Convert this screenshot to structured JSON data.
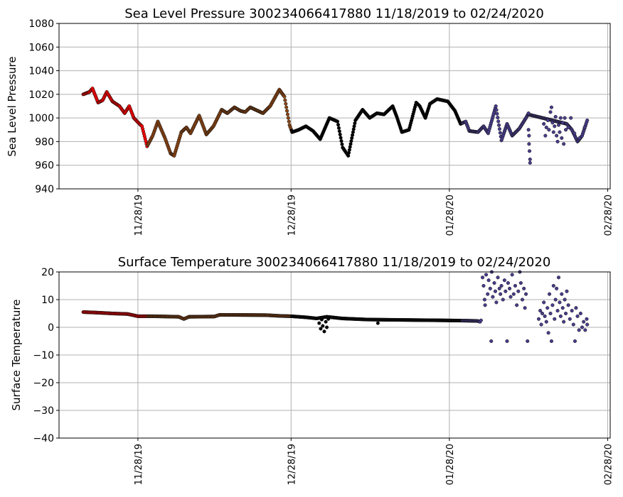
{
  "chart_data": [
    {
      "type": "scatter",
      "title": "Sea Level Pressure 300234066417880  11/18/2019 to 02/24/2020",
      "xlabel": "",
      "ylabel": "Sea Level Pressure",
      "ylim": [
        940,
        1080
      ],
      "yticks": [
        940,
        960,
        980,
        1000,
        1020,
        1040,
        1060,
        1080
      ],
      "yticklabels": [
        "940",
        "960",
        "980",
        "1000",
        "1020",
        "1040",
        "1060",
        "1080"
      ],
      "x_unit": "days since 11/28/19",
      "xlim": [
        -15.45,
        92.5
      ],
      "xticks": [
        0,
        30,
        61,
        92
      ],
      "xticklabels": [
        "11/28/19",
        "12/28/19",
        "01/28/20",
        "02/28/20"
      ],
      "grid": true,
      "segments": [
        {
          "until": 1.8,
          "color": "#ff0000"
        },
        {
          "until": 30.0,
          "color": "#8b4513"
        },
        {
          "until": 63.5,
          "color": "#000000"
        },
        {
          "until": 999,
          "color": "#483d8b"
        }
      ],
      "line_keypoints": [
        [
          -10.7,
          1020
        ],
        [
          -9.5,
          1022
        ],
        [
          -8.9,
          1025
        ],
        [
          -7.8,
          1013
        ],
        [
          -6.9,
          1015
        ],
        [
          -6.1,
          1022
        ],
        [
          -5.0,
          1014
        ],
        [
          -3.6,
          1010
        ],
        [
          -2.6,
          1004
        ],
        [
          -1.7,
          1010
        ],
        [
          -0.8,
          1000
        ],
        [
          0.3,
          995
        ],
        [
          0.8,
          993
        ],
        [
          1.8,
          976
        ],
        [
          2.9,
          985
        ],
        [
          3.9,
          997
        ],
        [
          5.3,
          983
        ],
        [
          6.4,
          970
        ],
        [
          7.1,
          968
        ],
        [
          8.5,
          988
        ],
        [
          9.5,
          992
        ],
        [
          10.3,
          987
        ],
        [
          12.0,
          1002
        ],
        [
          13.4,
          986
        ],
        [
          14.8,
          993
        ],
        [
          16.4,
          1007
        ],
        [
          17.5,
          1004
        ],
        [
          18.9,
          1009
        ],
        [
          20.1,
          1006
        ],
        [
          21.0,
          1005
        ],
        [
          22.0,
          1009
        ],
        [
          24.5,
          1004
        ],
        [
          25.9,
          1010
        ],
        [
          27.7,
          1024
        ],
        [
          28.7,
          1018
        ],
        [
          29.7,
          994
        ],
        [
          30.2,
          988
        ],
        [
          31.5,
          990
        ],
        [
          32.9,
          993
        ],
        [
          34.3,
          989
        ],
        [
          35.7,
          982
        ],
        [
          37.5,
          1000
        ],
        [
          39.1,
          997
        ],
        [
          40.1,
          975
        ],
        [
          41.2,
          968
        ],
        [
          42.6,
          998
        ],
        [
          44.0,
          1007
        ],
        [
          45.4,
          1000
        ],
        [
          46.8,
          1004
        ],
        [
          48.2,
          1003
        ],
        [
          49.9,
          1010
        ],
        [
          50.7,
          1001
        ],
        [
          51.7,
          988
        ],
        [
          53.1,
          990
        ],
        [
          54.5,
          1013
        ],
        [
          55.2,
          1010
        ],
        [
          56.3,
          1000
        ],
        [
          57.2,
          1012
        ],
        [
          58.6,
          1016
        ],
        [
          60.7,
          1014
        ],
        [
          62.1,
          1006
        ],
        [
          63.2,
          995
        ],
        [
          64.2,
          997
        ],
        [
          64.9,
          989
        ],
        [
          66.6,
          988
        ],
        [
          67.7,
          993
        ],
        [
          68.6,
          987
        ],
        [
          70.1,
          1010
        ],
        [
          71.2,
          981
        ],
        [
          72.3,
          995
        ],
        [
          73.3,
          985
        ],
        [
          74.7,
          991
        ],
        [
          76.0,
          1000
        ],
        [
          76.4,
          1003
        ],
        [
          84.0,
          995
        ],
        [
          85.0,
          990
        ],
        [
          86.1,
          980
        ],
        [
          87.0,
          985
        ],
        [
          88.0,
          998
        ]
      ],
      "line_gaps": [
        [
          76.5,
          83.9
        ]
      ],
      "scatter_points": [
        [
          76.5,
          990
        ],
        [
          76.6,
          985
        ],
        [
          76.6,
          978
        ],
        [
          76.7,
          972
        ],
        [
          76.8,
          965
        ],
        [
          76.8,
          962
        ],
        [
          76.5,
          1004
        ],
        [
          79.5,
          995
        ],
        [
          79.8,
          985
        ],
        [
          80.0,
          992
        ],
        [
          80.3,
          998
        ],
        [
          80.5,
          990
        ],
        [
          80.8,
          1005
        ],
        [
          81.0,
          1009
        ],
        [
          81.2,
          996
        ],
        [
          81.4,
          988
        ],
        [
          81.6,
          993
        ],
        [
          81.8,
          1001
        ],
        [
          82.0,
          985
        ],
        [
          82.2,
          980
        ],
        [
          82.4,
          994
        ],
        [
          82.6,
          988
        ],
        [
          82.8,
          1000
        ],
        [
          83.0,
          983
        ],
        [
          83.2,
          996
        ],
        [
          83.4,
          978
        ],
        [
          83.6,
          1000
        ],
        [
          83.8,
          990
        ],
        [
          84.3,
          992
        ],
        [
          84.8,
          1000
        ],
        [
          85.5,
          987
        ],
        [
          86.5,
          983
        ],
        [
          87.5,
          992
        ]
      ]
    },
    {
      "type": "scatter",
      "title": "Surface Temperature 300234066417880  11/18/2019 to 02/24/2020",
      "xlabel": "",
      "ylabel": "Surface Temperature",
      "ylim": [
        -40,
        20
      ],
      "yticks": [
        -40,
        -30,
        -20,
        -10,
        0,
        10,
        20
      ],
      "yticklabels": [
        "−40",
        "−30",
        "−20",
        "−10",
        "0",
        "10",
        "20"
      ],
      "x_unit": "days since 11/28/19",
      "xlim": [
        -15.45,
        92.5
      ],
      "xticks": [
        0,
        30,
        61,
        92
      ],
      "xticklabels": [
        "11/28/19",
        "12/28/19",
        "01/28/20",
        "02/28/20"
      ],
      "grid": true,
      "segments": [
        {
          "until": 1.8,
          "color": "#ff0000"
        },
        {
          "until": 30.0,
          "color": "#8b4513"
        },
        {
          "until": 63.5,
          "color": "#000000"
        },
        {
          "until": 999,
          "color": "#483d8b"
        }
      ],
      "line_keypoints": [
        [
          -10.7,
          5.5
        ],
        [
          -8,
          5.3
        ],
        [
          -5,
          5.0
        ],
        [
          -2,
          4.8
        ],
        [
          0,
          4.0
        ],
        [
          3,
          4.0
        ],
        [
          8,
          3.8
        ],
        [
          9,
          3.0
        ],
        [
          10,
          3.8
        ],
        [
          15,
          3.9
        ],
        [
          16,
          4.5
        ],
        [
          25,
          4.4
        ],
        [
          28,
          4.1
        ],
        [
          30,
          4.0
        ],
        [
          33,
          3.6
        ],
        [
          35,
          3.2
        ],
        [
          37,
          3.8
        ],
        [
          40,
          3.2
        ],
        [
          45,
          2.8
        ],
        [
          50,
          2.7
        ],
        [
          55,
          2.6
        ],
        [
          60,
          2.5
        ],
        [
          64,
          2.4
        ],
        [
          66.5,
          2.3
        ],
        [
          67,
          2.0
        ]
      ],
      "line_gaps": [],
      "scatter_points": [
        [
          35.5,
          1.5
        ],
        [
          35.8,
          -0.5
        ],
        [
          36.0,
          2.8
        ],
        [
          36.2,
          0.5
        ],
        [
          36.5,
          -1.5
        ],
        [
          36.8,
          2.0
        ],
        [
          37.0,
          0.0
        ],
        [
          37.3,
          3.0
        ],
        [
          47,
          1.5
        ],
        [
          67.2,
          2.5
        ],
        [
          67.5,
          18
        ],
        [
          67.7,
          15
        ],
        [
          67.9,
          10
        ],
        [
          68.0,
          8
        ],
        [
          68.2,
          19
        ],
        [
          68.5,
          12
        ],
        [
          68.7,
          17
        ],
        [
          69.0,
          14
        ],
        [
          69.2,
          -5
        ],
        [
          69.3,
          20
        ],
        [
          69.5,
          11
        ],
        [
          69.8,
          16
        ],
        [
          70.0,
          13
        ],
        [
          70.2,
          9
        ],
        [
          70.5,
          18
        ],
        [
          70.8,
          14
        ],
        [
          71.0,
          12
        ],
        [
          71.2,
          15
        ],
        [
          71.5,
          10
        ],
        [
          71.8,
          17
        ],
        [
          72.0,
          13
        ],
        [
          72.3,
          -5
        ],
        [
          72.5,
          16
        ],
        [
          72.8,
          14
        ],
        [
          73.0,
          11
        ],
        [
          73.3,
          19
        ],
        [
          73.6,
          12
        ],
        [
          73.9,
          15
        ],
        [
          74.2,
          8
        ],
        [
          74.5,
          13
        ],
        [
          74.8,
          20
        ],
        [
          75.0,
          16
        ],
        [
          75.3,
          10
        ],
        [
          75.6,
          14
        ],
        [
          75.8,
          7
        ],
        [
          76.0,
          12
        ],
        [
          76.3,
          -5
        ],
        [
          78.5,
          3
        ],
        [
          78.8,
          6
        ],
        [
          79.0,
          1
        ],
        [
          79.2,
          5
        ],
        [
          79.5,
          9
        ],
        [
          79.7,
          4
        ],
        [
          80.0,
          2
        ],
        [
          80.2,
          7
        ],
        [
          80.4,
          -2
        ],
        [
          80.6,
          12
        ],
        [
          80.8,
          5
        ],
        [
          81.0,
          -5
        ],
        [
          81.2,
          8
        ],
        [
          81.4,
          15
        ],
        [
          81.6,
          3
        ],
        [
          81.8,
          10
        ],
        [
          82.0,
          14
        ],
        [
          82.2,
          6
        ],
        [
          82.4,
          18
        ],
        [
          82.6,
          9
        ],
        [
          82.8,
          4
        ],
        [
          83.0,
          12
        ],
        [
          83.2,
          7
        ],
        [
          83.4,
          2
        ],
        [
          83.6,
          10
        ],
        [
          83.8,
          5
        ],
        [
          84.0,
          13
        ],
        [
          84.3,
          8
        ],
        [
          84.6,
          3
        ],
        [
          85.0,
          6
        ],
        [
          85.3,
          1
        ],
        [
          85.6,
          -5
        ],
        [
          85.8,
          7
        ],
        [
          86.1,
          4
        ],
        [
          86.4,
          -1
        ],
        [
          86.7,
          5
        ],
        [
          87.0,
          0
        ],
        [
          87.3,
          2
        ],
        [
          87.6,
          -1
        ],
        [
          87.9,
          3
        ],
        [
          88.0,
          1
        ]
      ]
    }
  ]
}
